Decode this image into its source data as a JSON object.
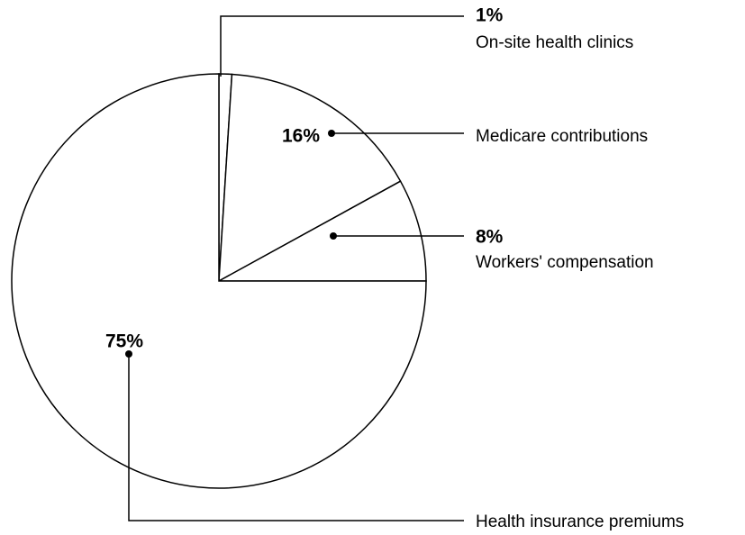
{
  "chart_data": {
    "type": "pie",
    "categories": [
      "On-site health clinics",
      "Medicare contributions",
      "Workers' compensation",
      "Health insurance premiums"
    ],
    "values": [
      1,
      16,
      8,
      75
    ],
    "value_labels": [
      "1%",
      "16%",
      "8%",
      "75%"
    ],
    "color": "#ffffff"
  }
}
